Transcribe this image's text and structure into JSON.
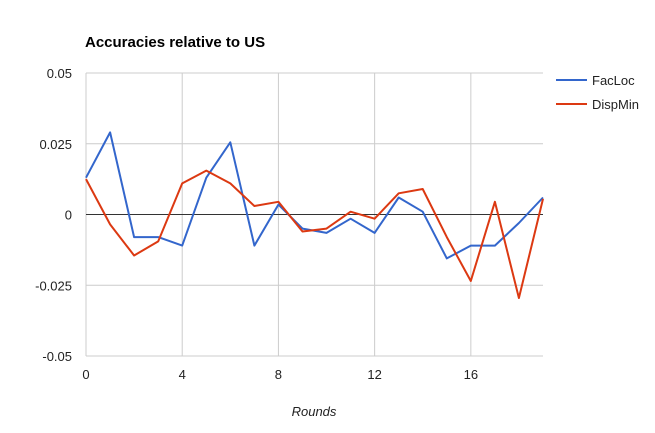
{
  "chart_data": {
    "type": "line",
    "title": "Accuracies relative to US",
    "xlabel": "Rounds",
    "ylabel": "",
    "xlim": [
      0,
      19
    ],
    "ylim": [
      -0.05,
      0.05
    ],
    "x_ticks": [
      0,
      4,
      8,
      12,
      16
    ],
    "x_tick_labels": [
      "0",
      "4",
      "8",
      "12",
      "16"
    ],
    "y_ticks": [
      0.05,
      0.025,
      0,
      -0.025,
      -0.05
    ],
    "y_tick_labels": [
      "0.05",
      "0.025",
      "0",
      "-0.025",
      "-0.05"
    ],
    "grid": true,
    "legend_position": "right",
    "x": [
      0,
      1,
      2,
      3,
      4,
      5,
      6,
      7,
      8,
      9,
      10,
      11,
      12,
      13,
      14,
      15,
      16,
      17,
      18,
      19
    ],
    "series": [
      {
        "name": "FacLoc",
        "color": "#3366cc",
        "values": [
          0.013,
          0.029,
          -0.008,
          -0.008,
          -0.011,
          0.013,
          0.0255,
          -0.011,
          0.0035,
          -0.005,
          -0.0065,
          -0.0015,
          -0.0065,
          0.006,
          0.001,
          -0.0155,
          -0.011,
          -0.011,
          -0.003,
          0.006
        ]
      },
      {
        "name": "DispMin",
        "color": "#dc3912",
        "values": [
          0.0125,
          -0.0035,
          -0.0145,
          -0.0095,
          0.011,
          0.0155,
          0.011,
          0.003,
          0.0045,
          -0.006,
          -0.005,
          0.001,
          -0.0015,
          0.0075,
          0.009,
          -0.008,
          -0.0235,
          0.0045,
          -0.0295,
          0.0055
        ]
      }
    ]
  }
}
